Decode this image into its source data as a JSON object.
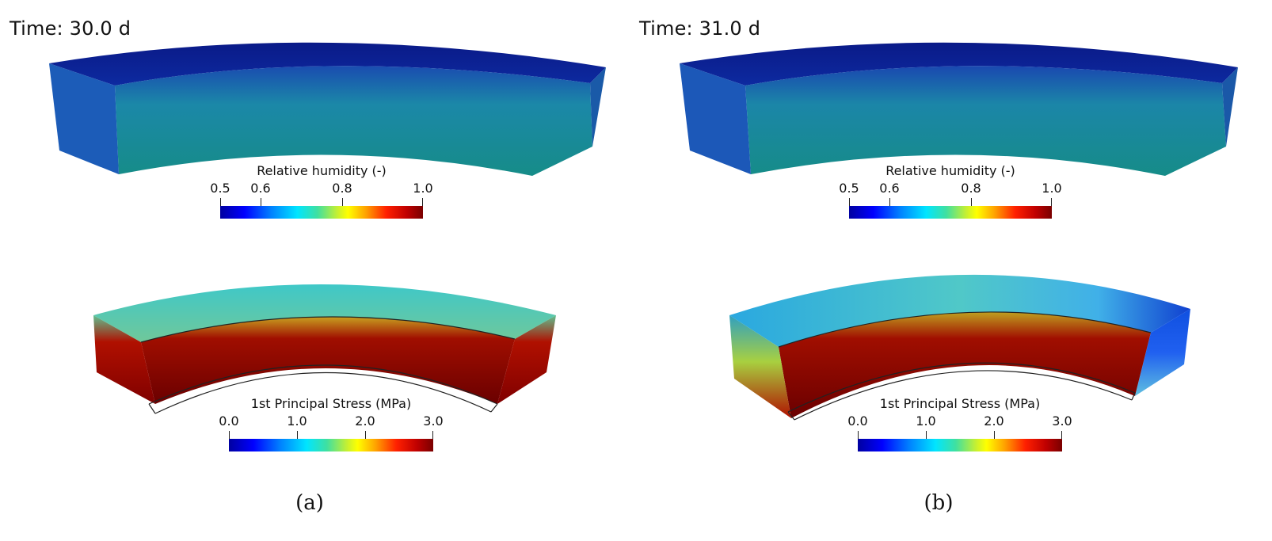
{
  "panels": [
    {
      "time": "Time: 30.0 d",
      "caption": "(a)",
      "humidity_colorbar": {
        "title": "Relative humidity (-)",
        "ticks": [
          "0.5",
          "0.6",
          "0.8",
          "1.0"
        ],
        "tick_values": [
          0.5,
          0.6,
          0.8,
          1.0
        ],
        "range": [
          0.5,
          1.0
        ]
      },
      "stress_colorbar": {
        "title": "1st Principal Stress (MPa)",
        "ticks": [
          "0.0",
          "1.0",
          "2.0",
          "3.0"
        ],
        "tick_values": [
          0.0,
          1.0,
          2.0,
          3.0
        ],
        "range": [
          0.0,
          3.0
        ]
      }
    },
    {
      "time": "Time: 31.0 d",
      "caption": "(b)",
      "humidity_colorbar": {
        "title": "Relative humidity (-)",
        "ticks": [
          "0.5",
          "0.6",
          "0.8",
          "1.0"
        ],
        "tick_values": [
          0.5,
          0.6,
          0.8,
          1.0
        ],
        "range": [
          0.5,
          1.0
        ]
      },
      "stress_colorbar": {
        "title": "1st Principal Stress (MPa)",
        "ticks": [
          "0.0",
          "1.0",
          "2.0",
          "3.0"
        ],
        "tick_values": [
          0.0,
          1.0,
          2.0,
          3.0
        ],
        "range": [
          0.0,
          3.0
        ]
      }
    }
  ],
  "colors": {
    "humidity_top": "#0a1f8f",
    "humidity_face": "#178a8f",
    "stress_top": "#6cc8a0",
    "stress_hot": "#7a0000"
  }
}
